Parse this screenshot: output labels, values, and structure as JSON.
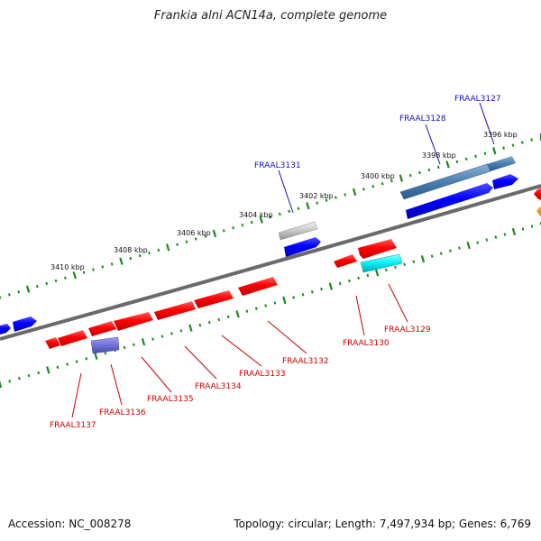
{
  "title": "Frankia alni ACN14a, complete genome",
  "footer": {
    "accession": "Accession: NC_008278",
    "summary": "Topology: circular; Length: 7,497,934 bp; Genes: 6,769"
  },
  "colors": {
    "backbone": "#777777",
    "tick": "#1a8a1a",
    "forward_label": "#1010c0",
    "reverse_label": "#cc0000"
  },
  "ticks": [
    {
      "kbp": 3396,
      "label": "3396 kbp"
    },
    {
      "kbp": 3398,
      "label": "3398 kbp"
    },
    {
      "kbp": 3400,
      "label": "3400 kbp"
    },
    {
      "kbp": 3402,
      "label": "3402 kbp"
    },
    {
      "kbp": 3404,
      "label": "3404 kbp"
    },
    {
      "kbp": 3406,
      "label": "3406 kbp"
    },
    {
      "kbp": 3408,
      "label": "3408 kbp"
    },
    {
      "kbp": 3410,
      "label": "3410 kbp"
    }
  ],
  "gene_labels": [
    {
      "name": "FRAAL3127",
      "strand": "forward"
    },
    {
      "name": "FRAAL3128",
      "strand": "forward"
    },
    {
      "name": "FRAAL3131",
      "strand": "forward"
    },
    {
      "name": "FRAAL3129",
      "strand": "reverse"
    },
    {
      "name": "FRAAL3130",
      "strand": "reverse"
    },
    {
      "name": "FRAAL3132",
      "strand": "reverse"
    },
    {
      "name": "FRAAL3133",
      "strand": "reverse"
    },
    {
      "name": "FRAAL3134",
      "strand": "reverse"
    },
    {
      "name": "FRAAL3135",
      "strand": "reverse"
    },
    {
      "name": "FRAAL3136",
      "strand": "reverse"
    },
    {
      "name": "FRAAL3137",
      "strand": "reverse"
    }
  ]
}
